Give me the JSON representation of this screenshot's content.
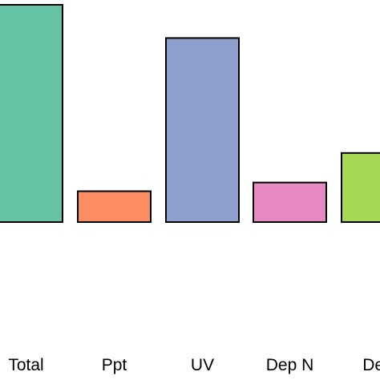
{
  "chart_data": {
    "type": "bar",
    "categories": [
      "Total",
      "Ppt",
      "UV",
      "Dep N",
      "Dep"
    ],
    "values": [
      100,
      14.2,
      84.7,
      18.2,
      31.8
    ],
    "colors": [
      "#66c2a5",
      "#fc8d62",
      "#8da0cb",
      "#e78ac3",
      "#a6d854"
    ],
    "bar_outline": "#000000",
    "title": "",
    "xlabel": "",
    "ylabel": "",
    "ylim": [
      0,
      100
    ],
    "grid": false,
    "legend": "none"
  }
}
